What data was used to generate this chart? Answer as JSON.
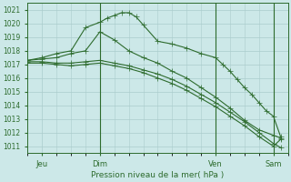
{
  "bg_color": "#cce8e8",
  "grid_color": "#aacccc",
  "line_color": "#2d6b2d",
  "title": "Pression niveau de la mer( hPa )",
  "ylim": [
    1010.5,
    1021.5
  ],
  "yticks": [
    1011,
    1012,
    1013,
    1014,
    1015,
    1016,
    1017,
    1018,
    1019,
    1020,
    1021
  ],
  "xlim": [
    0,
    72
  ],
  "xtick_pos": [
    4,
    20,
    52,
    68
  ],
  "xtick_labels": [
    "Jeu",
    "Dim",
    "Ven",
    "Sam"
  ],
  "vlines": [
    20,
    52,
    68
  ],
  "series1_x": [
    0,
    4,
    8,
    12,
    16,
    20,
    22,
    24,
    26,
    28,
    30,
    32,
    36,
    40,
    44,
    48,
    52,
    54,
    56,
    58,
    60,
    62,
    64,
    66,
    68,
    70
  ],
  "series1_y": [
    1017.3,
    1017.5,
    1017.8,
    1018.0,
    1019.7,
    1020.1,
    1020.4,
    1020.6,
    1020.8,
    1020.8,
    1020.5,
    1019.9,
    1018.7,
    1018.5,
    1018.2,
    1017.8,
    1017.5,
    1017.0,
    1016.5,
    1015.9,
    1015.3,
    1014.8,
    1014.2,
    1013.6,
    1013.2,
    1011.7
  ],
  "series2_x": [
    0,
    4,
    8,
    12,
    16,
    20,
    24,
    28,
    32,
    36,
    40,
    44,
    48,
    52,
    56,
    60,
    64,
    68,
    70
  ],
  "series2_y": [
    1017.3,
    1017.4,
    1017.5,
    1017.8,
    1018.0,
    1019.4,
    1018.8,
    1018.0,
    1017.5,
    1017.1,
    1016.5,
    1016.0,
    1015.3,
    1014.6,
    1013.8,
    1012.9,
    1012.2,
    1011.8,
    1011.6
  ],
  "series3_x": [
    0,
    4,
    8,
    12,
    16,
    20,
    24,
    28,
    32,
    36,
    40,
    44,
    48,
    52,
    56,
    60,
    64,
    68,
    70
  ],
  "series3_y": [
    1017.2,
    1017.2,
    1017.1,
    1017.1,
    1017.2,
    1017.3,
    1017.1,
    1016.9,
    1016.6,
    1016.3,
    1015.9,
    1015.4,
    1014.8,
    1014.2,
    1013.5,
    1012.8,
    1012.0,
    1011.2,
    1010.9
  ],
  "series4_x": [
    0,
    4,
    8,
    12,
    16,
    20,
    24,
    28,
    32,
    36,
    40,
    44,
    48,
    52,
    56,
    60,
    64,
    68,
    70
  ],
  "series4_y": [
    1017.1,
    1017.1,
    1017.0,
    1016.9,
    1017.0,
    1017.1,
    1016.9,
    1016.7,
    1016.4,
    1016.0,
    1015.6,
    1015.1,
    1014.5,
    1013.9,
    1013.2,
    1012.5,
    1011.7,
    1011.0,
    1011.5
  ]
}
